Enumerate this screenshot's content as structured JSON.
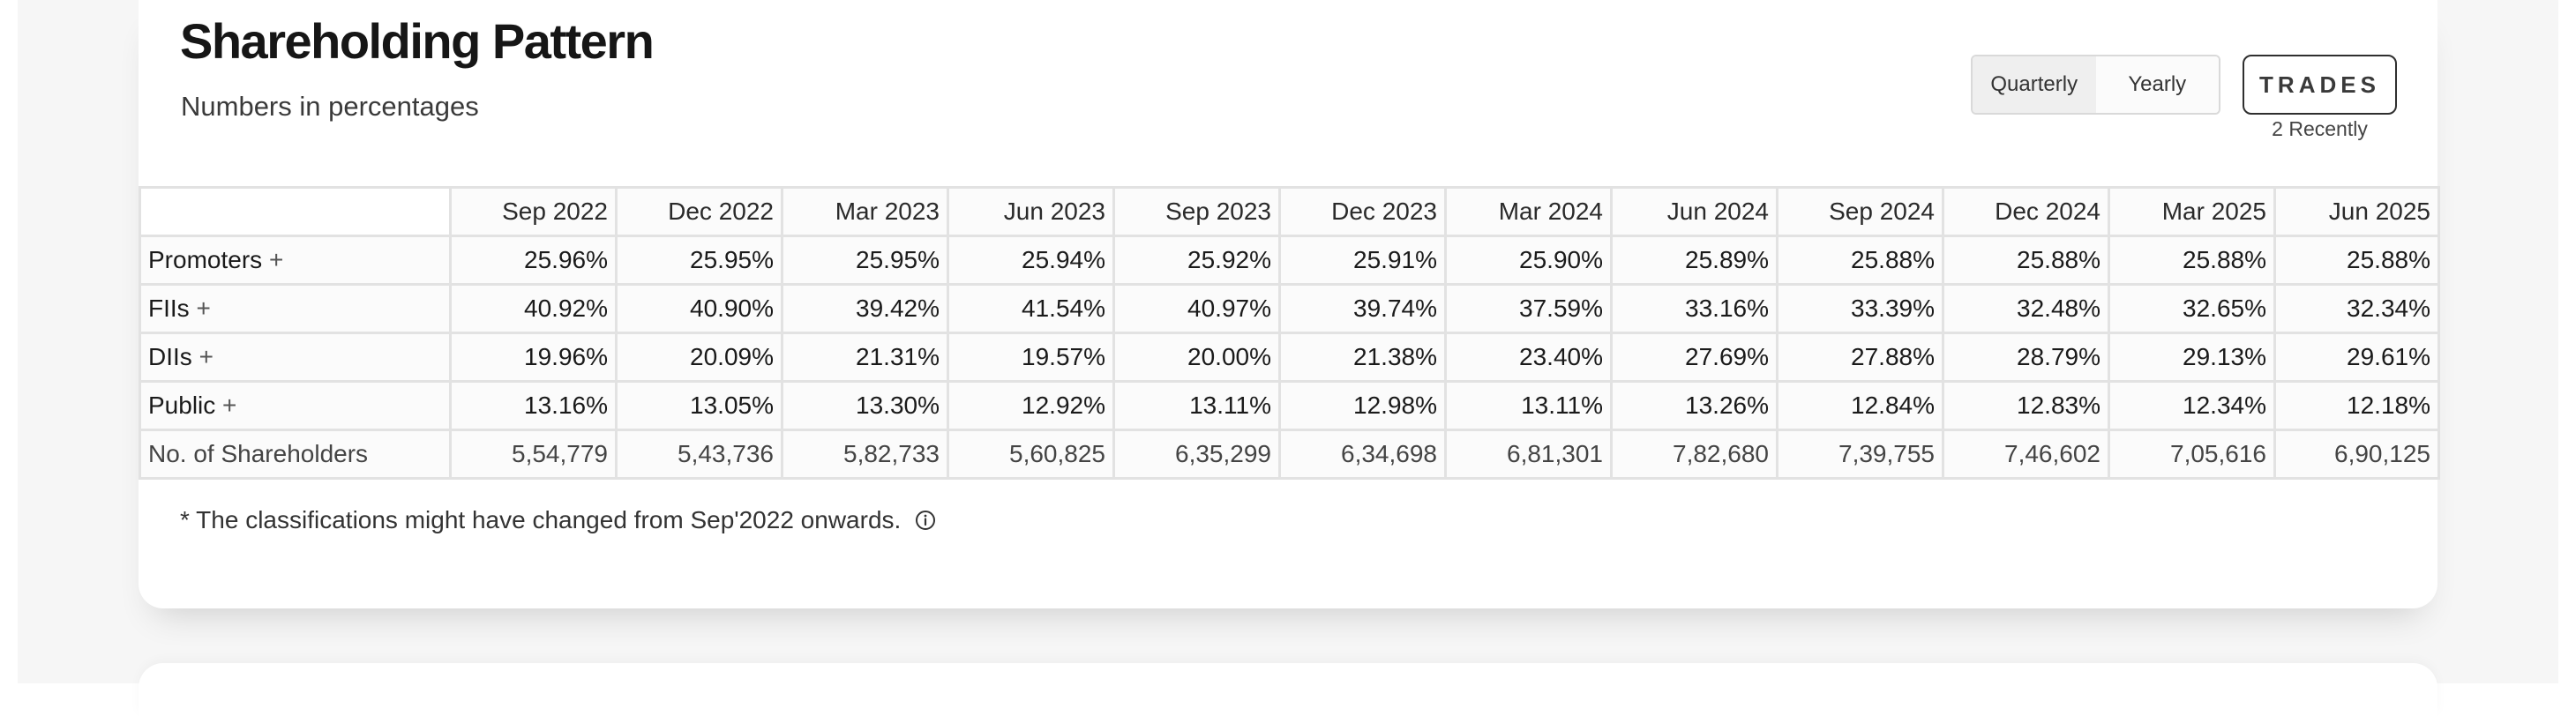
{
  "header": {
    "title": "Shareholding Pattern",
    "subtitle": "Numbers in percentages"
  },
  "period_toggle": {
    "options": [
      "Quarterly",
      "Yearly"
    ],
    "selected": "Quarterly"
  },
  "trades": {
    "label": "TRADES",
    "sublabel": "2 Recently"
  },
  "table": {
    "columns": [
      "Sep 2022",
      "Dec 2022",
      "Mar 2023",
      "Jun 2023",
      "Sep 2023",
      "Dec 2023",
      "Mar 2024",
      "Jun 2024",
      "Sep 2024",
      "Dec 2024",
      "Mar 2025",
      "Jun 2025"
    ],
    "rows": [
      {
        "label": "Promoters",
        "expand": "+",
        "values": [
          "25.96%",
          "25.95%",
          "25.95%",
          "25.94%",
          "25.92%",
          "25.91%",
          "25.90%",
          "25.89%",
          "25.88%",
          "25.88%",
          "25.88%",
          "25.88%"
        ]
      },
      {
        "label": "FIIs",
        "expand": "+",
        "values": [
          "40.92%",
          "40.90%",
          "39.42%",
          "41.54%",
          "40.97%",
          "39.74%",
          "37.59%",
          "33.16%",
          "33.39%",
          "32.48%",
          "32.65%",
          "32.34%"
        ]
      },
      {
        "label": "DIIs",
        "expand": "+",
        "values": [
          "19.96%",
          "20.09%",
          "21.31%",
          "19.57%",
          "20.00%",
          "21.38%",
          "23.40%",
          "27.69%",
          "27.88%",
          "28.79%",
          "29.13%",
          "29.61%"
        ]
      },
      {
        "label": "Public",
        "expand": "+",
        "values": [
          "13.16%",
          "13.05%",
          "13.30%",
          "12.92%",
          "13.11%",
          "12.98%",
          "13.11%",
          "13.26%",
          "12.84%",
          "12.83%",
          "12.34%",
          "12.18%"
        ]
      },
      {
        "label": "No. of Shareholders",
        "expand": "",
        "values": [
          "5,54,779",
          "5,43,736",
          "5,82,733",
          "5,60,825",
          "6,35,299",
          "6,34,698",
          "6,81,301",
          "7,82,680",
          "7,39,755",
          "7,46,602",
          "7,05,616",
          "6,90,125"
        ]
      }
    ]
  },
  "footnote": {
    "text": "* The classifications might have changed from Sep'2022 onwards.",
    "icon": "info-icon"
  }
}
